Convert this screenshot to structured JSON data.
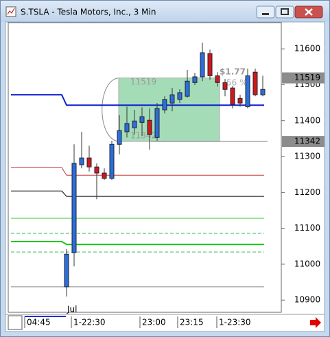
{
  "window": {
    "title": "S.TSLA - Tesla Motors, Inc., 3 Min"
  },
  "chart_data": {
    "type": "candlestick",
    "open": [
      10937,
      11032,
      11277,
      11296,
      11271,
      11254,
      11239,
      11334,
      11369,
      11380,
      11395,
      11401,
      11353,
      11430,
      11449,
      11459,
      11468,
      11506,
      11522,
      11587,
      11525,
      11506,
      11491,
      11462,
      11439,
      11535,
      11472
    ],
    "high": [
      11042,
      11334,
      11369,
      11330,
      11281,
      11267,
      11344,
      11415,
      11439,
      11430,
      11437,
      11434,
      11449,
      11468,
      11491,
      11487,
      11541,
      11533,
      11617,
      11598,
      11535,
      11516,
      11497,
      11472,
      11545,
      11545,
      11525
    ],
    "low": [
      10910,
      10994,
      11267,
      11258,
      11181,
      11235,
      11235,
      11306,
      11353,
      11361,
      11357,
      11319,
      11344,
      11420,
      11426,
      11449,
      11464,
      11499,
      11510,
      11514,
      11495,
      11468,
      11434,
      11439,
      11434,
      11468,
      11468
    ],
    "close": [
      11028,
      11281,
      11296,
      11271,
      11254,
      11239,
      11334,
      11372,
      11392,
      11399,
      11411,
      11361,
      11434,
      11459,
      11472,
      11478,
      11510,
      11522,
      11589,
      11525,
      11506,
      11487,
      11445,
      11449,
      11525,
      11472,
      11487
    ],
    "up_color": "#2b6fd8",
    "down_color": "#d01818",
    "levels": [
      {
        "color": "#0a1fd0",
        "values": [
          11472,
          11443
        ]
      },
      {
        "color": "#c83030",
        "values": [
          11269,
          11248
        ]
      },
      {
        "color": "#000000",
        "values": [
          11204,
          11189
        ]
      },
      {
        "color": "#33cc33",
        "values": [
          11128,
          11128
        ]
      },
      {
        "color": "#33bb55",
        "values": [
          11086,
          11086
        ],
        "dashed": true
      },
      {
        "color": "#11cc11",
        "values": [
          11063,
          11055
        ]
      },
      {
        "color": "#33bb55",
        "values": [
          11034,
          11034
        ],
        "dashed": true
      },
      {
        "color": "#888888",
        "values": [
          10937,
          10937
        ]
      }
    ],
    "selection": {
      "top": 11519,
      "bottom": 11342,
      "change": "$1.77",
      "percent": "56 %"
    },
    "price_markers": [
      11519,
      11342
    ],
    "ylim": [
      10866,
      11673
    ],
    "yticks": [
      10900,
      11000,
      11100,
      11200,
      11300,
      11400,
      11500,
      11600
    ],
    "x_labels": [
      "04:45",
      "1-22:30",
      "23:00",
      "23:15",
      "1-23:30"
    ],
    "month_label": "Jul"
  }
}
